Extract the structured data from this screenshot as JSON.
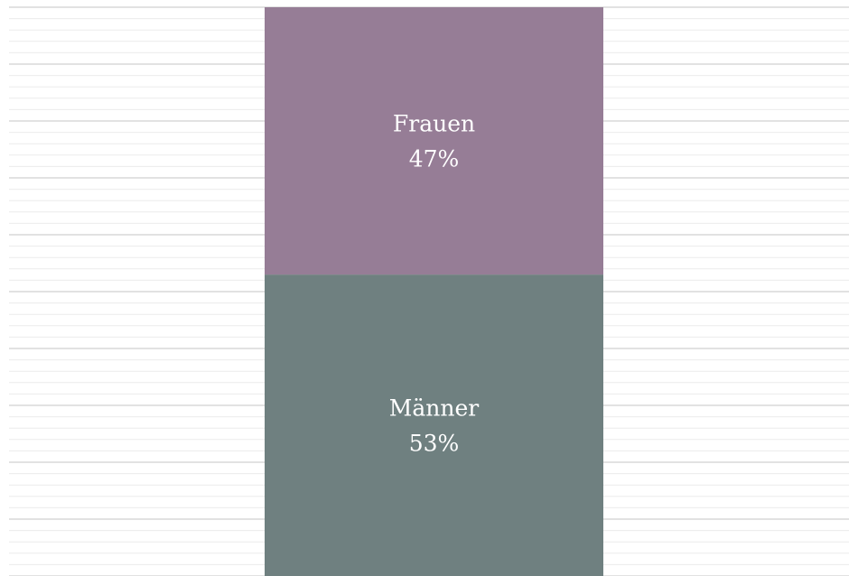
{
  "chart_data": {
    "type": "stacked_bar",
    "categories": [
      null
    ],
    "series": [
      {
        "name": "Männer",
        "color": "#6f8080",
        "values": [
          53
        ],
        "value_labels": [
          "53%"
        ]
      },
      {
        "name": "Frauen",
        "color": "#967d96",
        "values": [
          47
        ],
        "value_labels": [
          "47%"
        ]
      }
    ],
    "ylim": [
      0,
      100
    ],
    "yticks": [
      0,
      10,
      20,
      30,
      40,
      50,
      60,
      70,
      80,
      90,
      100
    ],
    "yticks_minor": [
      2,
      4,
      6,
      8,
      12,
      14,
      16,
      18,
      22,
      24,
      26,
      28,
      32,
      34,
      36,
      38,
      42,
      44,
      46,
      48,
      52,
      54,
      56,
      58,
      62,
      64,
      66,
      68,
      72,
      74,
      76,
      78,
      82,
      84,
      86,
      88,
      92,
      94,
      96,
      98
    ],
    "grid": true
  }
}
